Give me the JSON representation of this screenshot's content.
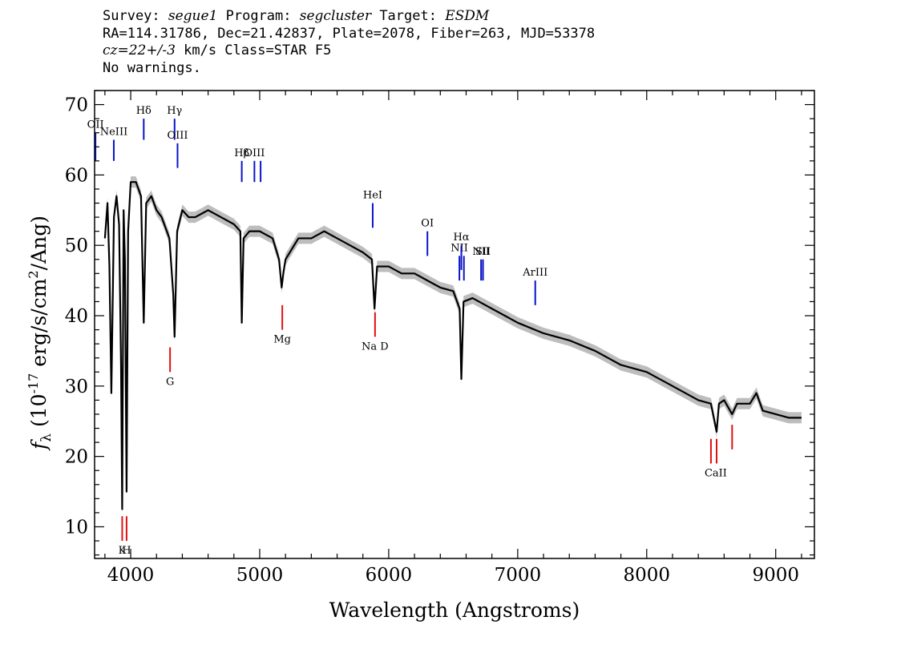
{
  "header": {
    "line1_parts": [
      "Survey: ",
      "segue1",
      " Program: ",
      "segcluster",
      " Target: ",
      "ESDM"
    ],
    "line2": "RA=114.31786, Dec=21.42837, Plate=2078, Fiber=263, MJD=53378",
    "line3_parts": [
      "cz=22+/-3",
      " km/s Class=STAR F5"
    ],
    "line4": "No warnings."
  },
  "chart_data": {
    "type": "line",
    "xlabel": "Wavelength (Angstroms)",
    "ylabel": "f_λ (10^-17 erg/s/cm^2/Ang)",
    "xlim": [
      3720,
      9300
    ],
    "ylim": [
      5.5,
      72
    ],
    "x_ticks": [
      4000,
      5000,
      6000,
      7000,
      8000,
      9000
    ],
    "y_ticks": [
      10,
      20,
      30,
      40,
      50,
      60,
      70
    ],
    "colors": {
      "spectrum": "#000000",
      "error_band": "#bdbdbd",
      "emission": "#0a14c8",
      "absorption": "#e01010"
    },
    "series": [
      {
        "x": [
          3800,
          3820,
          3835,
          3850,
          3870,
          3890,
          3910,
          3925,
          3934,
          3945,
          3955,
          3968,
          3980,
          4000,
          4040,
          4080,
          4101,
          4120,
          4160,
          4200,
          4240,
          4280,
          4300,
          4330,
          4340,
          4360,
          4400,
          4450,
          4500,
          4600,
          4700,
          4800,
          4850,
          4861,
          4875,
          4920,
          5000,
          5100,
          5150,
          5170,
          5183,
          5200,
          5300,
          5400,
          5500,
          5600,
          5700,
          5800,
          5870,
          5890,
          5910,
          6000,
          6100,
          6200,
          6300,
          6400,
          6500,
          6550,
          6563,
          6580,
          6650,
          6800,
          7000,
          7200,
          7400,
          7600,
          7800,
          8000,
          8200,
          8400,
          8498,
          8542,
          8560,
          8600,
          8662,
          8700,
          8800,
          8850,
          8900,
          9000,
          9100,
          9200
        ],
        "y": [
          51,
          56,
          47,
          29,
          54,
          57,
          53,
          33,
          12.5,
          55,
          48,
          15,
          52,
          59,
          59,
          57,
          39,
          56,
          57,
          55,
          54,
          52,
          51,
          43,
          37,
          52,
          55,
          54,
          54,
          55,
          54,
          53,
          52,
          39,
          51,
          52,
          52,
          51,
          48,
          44,
          46,
          48,
          51,
          51,
          52,
          51,
          50,
          49,
          48,
          41,
          47,
          47,
          46,
          46,
          45,
          44,
          43.5,
          41,
          31,
          42,
          42.5,
          41,
          39,
          37.5,
          36.5,
          35,
          33,
          32,
          30,
          28,
          27.5,
          23.5,
          27.5,
          28,
          26,
          27.5,
          27.5,
          29,
          26.5,
          26,
          25.5,
          25.5
        ]
      }
    ],
    "emission_lines": [
      {
        "label": "OII",
        "x": 3727,
        "y_bottom": 62,
        "y_top": 66
      },
      {
        "label": "NeIII",
        "x": 3869,
        "y_bottom": 62,
        "y_top": 65
      },
      {
        "label": "Hδ",
        "x": 4101,
        "y_bottom": 65,
        "y_top": 68
      },
      {
        "label": "Hγ",
        "x": 4340,
        "y_bottom": 65,
        "y_top": 68
      },
      {
        "label": "OIII",
        "x": 4363,
        "y_bottom": 61,
        "y_top": 64.5
      },
      {
        "label": "Hβ",
        "x": 4861,
        "y_bottom": 59,
        "y_top": 62
      },
      {
        "label": "OIII",
        "x": 4959,
        "y_bottom": 59,
        "y_top": 62
      },
      {
        "label": "",
        "x": 5007,
        "y_bottom": 59,
        "y_top": 62
      },
      {
        "label": "HeI",
        "x": 5876,
        "y_bottom": 52.5,
        "y_top": 56
      },
      {
        "label": "OI",
        "x": 6300,
        "y_bottom": 48.5,
        "y_top": 52
      },
      {
        "label": "NII",
        "x": 6548,
        "y_bottom": 45,
        "y_top": 48.5
      },
      {
        "label": "Hα",
        "x": 6563,
        "y_bottom": 46.5,
        "y_top": 50
      },
      {
        "label": "",
        "x": 6583,
        "y_bottom": 45,
        "y_top": 48.5
      },
      {
        "label": "NII",
        "x": 6716,
        "y_bottom": 45,
        "y_top": 48
      },
      {
        "label": "SII",
        "x": 6731,
        "y_bottom": 45,
        "y_top": 48
      },
      {
        "label": "ArIII",
        "x": 7136,
        "y_bottom": 41.5,
        "y_top": 45
      }
    ],
    "absorption_lines": [
      {
        "label": "K",
        "x": 3934,
        "y_bottom": 8,
        "y_top": 11.5
      },
      {
        "label": "H",
        "x": 3968,
        "y_bottom": 8,
        "y_top": 11.5
      },
      {
        "label": "G",
        "x": 4305,
        "y_bottom": 32,
        "y_top": 35.5
      },
      {
        "label": "Mg",
        "x": 5175,
        "y_bottom": 38,
        "y_top": 41.5
      },
      {
        "label": "Na D",
        "x": 5894,
        "y_bottom": 37,
        "y_top": 40.5
      },
      {
        "label": "CaII",
        "x": 8498,
        "y_bottom": 19,
        "y_top": 22.5
      },
      {
        "label": "",
        "x": 8542,
        "y_bottom": 19,
        "y_top": 22.5
      },
      {
        "label": "",
        "x": 8662,
        "y_bottom": 21,
        "y_top": 24.5
      }
    ]
  }
}
